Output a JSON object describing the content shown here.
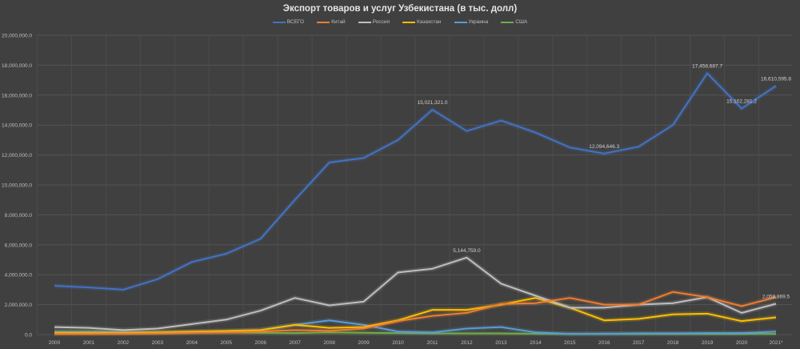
{
  "chart_data": {
    "type": "line",
    "title": "Экспорт товаров и услуг Узбекистана (в тыс. долл)",
    "xlabel": "",
    "ylabel": "",
    "ylim": [
      0,
      20000000
    ],
    "y_ticks": [
      "0.0",
      "2,000,000.0",
      "4,000,000.0",
      "6,000,000.0",
      "8,000,000.0",
      "10,000,000.0",
      "12,000,000.0",
      "14,000,000.0",
      "16,000,000.0",
      "18,000,000.0",
      "20,000,000.0"
    ],
    "categories": [
      "2000",
      "2001",
      "2002",
      "2003",
      "2004",
      "2005",
      "2006",
      "2007",
      "2008",
      "2009",
      "2010",
      "2011",
      "2012",
      "2013",
      "2014",
      "2015",
      "2016",
      "2017",
      "2018",
      "2019",
      "2020",
      "2021*"
    ],
    "grid": true,
    "legend_position": "top",
    "series": [
      {
        "name": "ВСЕГО",
        "color": "#4472c4",
        "values": [
          3260000,
          3150000,
          3000000,
          3700000,
          4850000,
          5400000,
          6400000,
          9000000,
          11500000,
          11800000,
          13000000,
          15021321.0,
          13600000,
          14300000,
          13500000,
          12500000,
          12094646.3,
          12550000,
          14000000,
          17458687.7,
          15102281.2,
          16610595.8
        ]
      },
      {
        "name": "Китай",
        "color": "#ed7d31",
        "values": [
          50000,
          50000,
          60000,
          80000,
          120000,
          150000,
          200000,
          300000,
          250000,
          400000,
          900000,
          1250000,
          1450000,
          2050000,
          2100000,
          2450000,
          2000000,
          2000000,
          2850000,
          2500000,
          1900000,
          2500000
        ]
      },
      {
        "name": "Россия",
        "color": "#bfbfbf",
        "values": [
          500000,
          450000,
          300000,
          400000,
          700000,
          1000000,
          1600000,
          2450000,
          1950000,
          2200000,
          4150000,
          4400000,
          5144759.0,
          3400000,
          2600000,
          1800000,
          1800000,
          2000000,
          2100000,
          2500000,
          1450000,
          2058869.5
        ]
      },
      {
        "name": "Казахстан",
        "color": "#ffc000",
        "values": [
          100000,
          100000,
          100000,
          150000,
          200000,
          250000,
          300000,
          650000,
          450000,
          500000,
          950000,
          1650000,
          1650000,
          2000000,
          2450000,
          1800000,
          950000,
          1050000,
          1350000,
          1400000,
          900000,
          1150000
        ]
      },
      {
        "name": "Украина",
        "color": "#5b9bd5",
        "values": [
          150000,
          150000,
          150000,
          150000,
          180000,
          200000,
          300000,
          650000,
          950000,
          650000,
          200000,
          150000,
          400000,
          500000,
          150000,
          50000,
          60000,
          80000,
          80000,
          100000,
          100000,
          200000
        ]
      },
      {
        "name": "США",
        "color": "#70ad47",
        "values": [
          200000,
          200000,
          180000,
          150000,
          150000,
          150000,
          120000,
          100000,
          150000,
          120000,
          100000,
          80000,
          80000,
          80000,
          60000,
          50000,
          50000,
          50000,
          50000,
          50000,
          50000,
          50000
        ]
      }
    ],
    "data_labels": [
      {
        "series": "ВСЕГО",
        "x": "2011",
        "text": "15,021,321.0"
      },
      {
        "series": "ВСЕГО",
        "x": "2016",
        "text": "12,094,646.3"
      },
      {
        "series": "ВСЕГО",
        "x": "2019",
        "text": "17,458,687.7"
      },
      {
        "series": "ВСЕГО",
        "x": "2020",
        "text": "15,102,281.2"
      },
      {
        "series": "ВСЕГО",
        "x": "2021*",
        "text": "16,610,595.8"
      },
      {
        "series": "Россия",
        "x": "2012",
        "text": "5,144,759.0"
      },
      {
        "series": "Россия",
        "x": "2021*",
        "text": "2,058,869.5"
      }
    ]
  }
}
